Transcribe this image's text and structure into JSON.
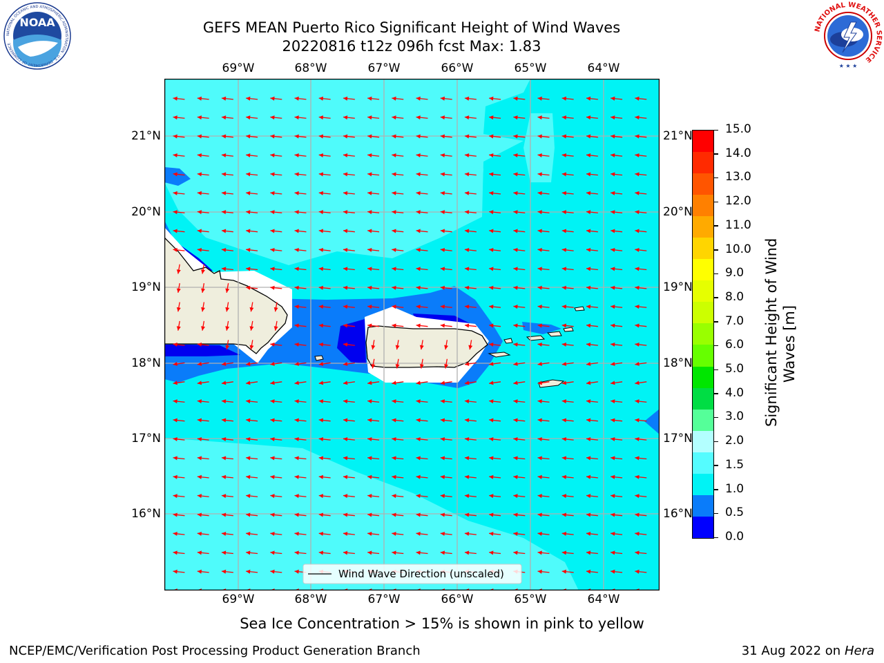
{
  "header": {
    "title_line1": "GEFS MEAN Puerto Rico Significant Height of Wind Waves",
    "title_line2": "20220816 t12z 096h fcst   Max: 1.83"
  },
  "logos": {
    "noaa_text": "NOAA",
    "noaa_ring_text": "NATIONAL OCEANIC AND ATMOSPHERIC ADMINISTRATION · U.S. DEPARTMENT OF COMMERCE",
    "nws_ring_text": "NATIONAL WEATHER SERVICE"
  },
  "map": {
    "lon_labels": [
      "69°W",
      "68°W",
      "67°W",
      "66°W",
      "65°W",
      "64°W"
    ],
    "lat_labels": [
      "21°N",
      "20°N",
      "19°N",
      "18°N",
      "17°N",
      "16°N"
    ],
    "legend_label": "Wind Wave Direction (unscaled)",
    "colors": {
      "ocean_base": "#00f3f5",
      "light_cyan": "#4ffbfb",
      "mid_blue": "#0a7cfa",
      "deep_blue": "#0000ef",
      "land": "#efeedd",
      "arrow": "#ff0000",
      "grid": "#b0b0b0"
    }
  },
  "colorbar": {
    "title": "Significant Height of Wind Waves [m]",
    "title_line1": "Significant Height of Wind",
    "title_line2": "Waves [m]",
    "ticks": [
      "15.0",
      "14.0",
      "13.0",
      "12.0",
      "11.0",
      "10.0",
      "9.0",
      "8.0",
      "7.0",
      "6.0",
      "5.0",
      "4.0",
      "3.0",
      "2.0",
      "1.5",
      "1.0",
      "0.5",
      "0.0"
    ],
    "colors_top_to_bottom": [
      "#ff0000",
      "#ff2a00",
      "#ff5500",
      "#ff8000",
      "#ffaa00",
      "#ffd500",
      "#ffff00",
      "#e6ff00",
      "#ccff00",
      "#99ff00",
      "#66ff00",
      "#00e600",
      "#00dd44",
      "#55ff99",
      "#b3ffff",
      "#55fcff",
      "#00f3f5",
      "#0a7cfa",
      "#0000ff"
    ]
  },
  "subtitle": "Sea Ice Concentration > 15% is shown in pink to yellow",
  "footer": {
    "left": "NCEP/EMC/Verification Post Processing Product Generation Branch",
    "right_date": "31 Aug 2022 on",
    "right_machine": "Hera"
  }
}
